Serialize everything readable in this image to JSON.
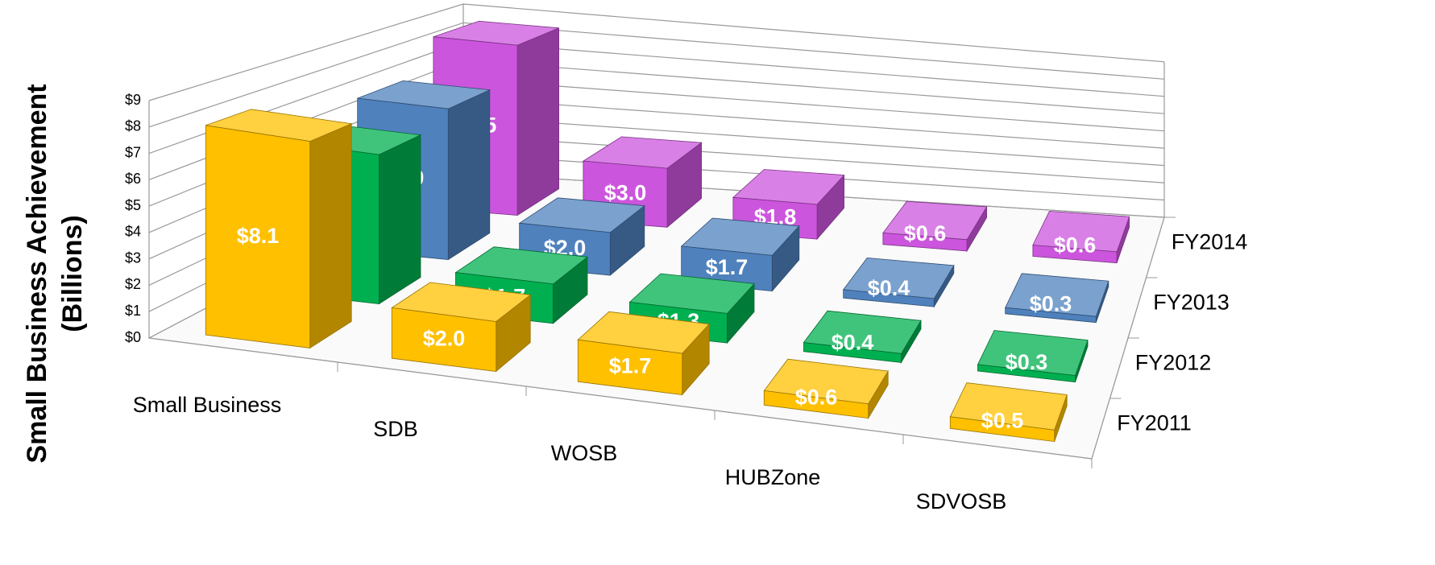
{
  "chart_data": {
    "type": "bar3d",
    "ylabel": [
      "Small Business Achievement",
      "(Billions)"
    ],
    "categories": [
      "Small Business",
      "SDB",
      "WOSB",
      "HUBZone",
      "SDVOSB"
    ],
    "series": [
      {
        "name": "FY2011",
        "color": "#FFC000",
        "values": [
          8.1,
          2.0,
          1.7,
          0.6,
          0.5
        ],
        "value_labels": [
          "$8.1",
          "$2.0",
          "$1.7",
          "$0.6",
          "$0.5"
        ]
      },
      {
        "name": "FY2012",
        "color": "#00B050",
        "values": [
          6.3,
          1.7,
          1.3,
          0.4,
          0.3
        ],
        "value_labels": [
          "$6.3",
          "$1.7",
          "$1.3",
          "$0.4",
          "$0.3"
        ]
      },
      {
        "name": "FY2013",
        "color": "#4F81BD",
        "values": [
          6.9,
          2.0,
          1.7,
          0.4,
          0.3
        ],
        "value_labels": [
          "$6.9",
          "$2.0",
          "$1.7",
          "$0.4",
          "$0.3"
        ]
      },
      {
        "name": "FY2014",
        "color": "#CC55DD",
        "values": [
          8.5,
          3.0,
          1.8,
          0.6,
          0.6
        ],
        "value_labels": [
          "$8.5",
          "$3.0",
          "$1.8",
          "$0.6",
          "$0.6"
        ]
      }
    ],
    "ylim": [
      0,
      9
    ],
    "yticks": [
      {
        "value": 0,
        "label": "$0"
      },
      {
        "value": 1,
        "label": "$1"
      },
      {
        "value": 2,
        "label": "$2"
      },
      {
        "value": 3,
        "label": "$3"
      },
      {
        "value": 4,
        "label": "$4"
      },
      {
        "value": 5,
        "label": "$5"
      },
      {
        "value": 6,
        "label": "$6"
      },
      {
        "value": 7,
        "label": "$7"
      },
      {
        "value": 8,
        "label": "$8"
      },
      {
        "value": 9,
        "label": "$9"
      }
    ],
    "grid": true
  }
}
